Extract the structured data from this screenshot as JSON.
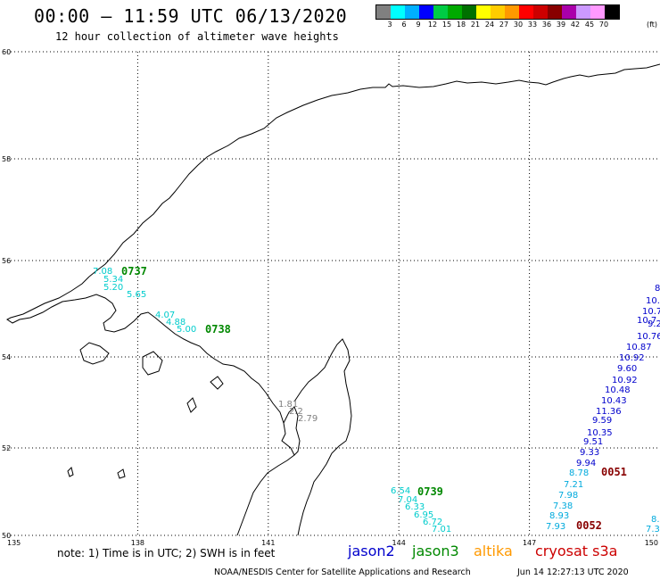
{
  "header": {
    "title": "00:00 — 11:59 UTC 06/13/2020",
    "subtitle": "12 hour collection of altimeter wave heights"
  },
  "legend": {
    "unit": "(ft)",
    "labels": [
      "3",
      "6",
      "9",
      "12",
      "15",
      "18",
      "21",
      "24",
      "27",
      "30",
      "33",
      "36",
      "39",
      "42",
      "45",
      "70"
    ],
    "colors": [
      "#808080",
      "#00ffff",
      "#00b0ff",
      "#0000ff",
      "#00cc44",
      "#00aa00",
      "#007000",
      "#ffff00",
      "#ffcc00",
      "#ff9900",
      "#ff0000",
      "#cc0000",
      "#880000",
      "#aa00aa",
      "#cc99ff",
      "#ff99ff",
      "#000000"
    ]
  },
  "map": {
    "lat_labels": [
      "60",
      "58",
      "56",
      "54",
      "52",
      "50"
    ],
    "lon_labels": [
      "135",
      "138",
      "141",
      "144",
      "147",
      "150"
    ]
  },
  "tracks": [
    {
      "satellite": "jason3",
      "color": "#00cccc",
      "values": [
        "7.08",
        "5.34",
        "5.20",
        "5.65",
        "4.07",
        "4.88",
        "5.00"
      ]
    },
    {
      "satellite": "jason3",
      "color": "#808080",
      "values": [
        "1.81",
        "2.2",
        "2.79"
      ]
    },
    {
      "satellite": "jason3",
      "color": "#00cccc",
      "values": [
        "6.54",
        "7.04",
        "6.33",
        "6.95",
        "6.72",
        "7.01"
      ]
    },
    {
      "satellite": "jason2",
      "color": "#0000cc",
      "values": [
        "8",
        "10.",
        "10.7",
        "10.7",
        "9.20",
        "10.76",
        "10.87",
        "10.92",
        "9.60",
        "10.92",
        "10.48",
        "10.43",
        "11.36",
        "9.59",
        "10.35",
        "9.51",
        "9.33",
        "9.94"
      ]
    },
    {
      "satellite": "jason2",
      "color": "#00aadd",
      "values": [
        "8.78",
        "7.21",
        "7.98",
        "7.38",
        "8.93",
        "7.93",
        "8.",
        "7.3"
      ]
    }
  ],
  "time_labels": [
    {
      "text": "0737",
      "color": "#008800"
    },
    {
      "text": "0738",
      "color": "#008800"
    },
    {
      "text": "0739",
      "color": "#008800"
    },
    {
      "text": "0051",
      "color": "#880000"
    },
    {
      "text": "0052",
      "color": "#880000"
    }
  ],
  "note": "note:  1) Time is in UTC;  2) SWH is in feet",
  "satellites": [
    {
      "name": "jason2",
      "color": "#0000cc"
    },
    {
      "name": "jason3",
      "color": "#008800"
    },
    {
      "name": "altika",
      "color": "#ff9900"
    },
    {
      "name": "cryosat s3a",
      "color": "#cc0000"
    }
  ],
  "footer": {
    "credit": "NOAA/NESDIS Center for Satellite Applications and Research",
    "timestamp": "Jun 14 12:27:13 UTC 2020"
  }
}
